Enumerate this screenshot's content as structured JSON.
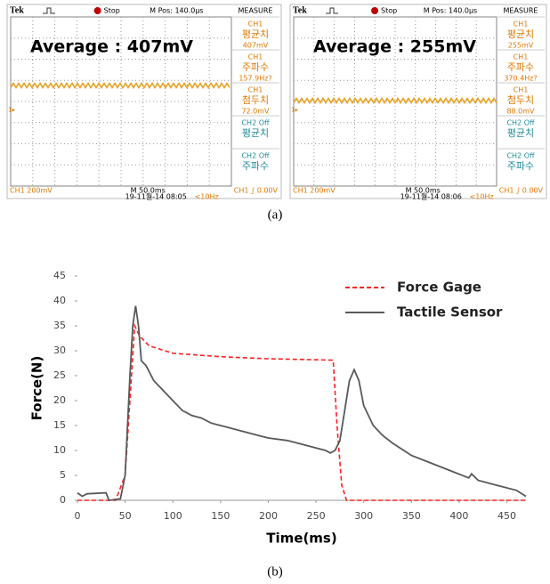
{
  "scopes": [
    {
      "brand": "Tek",
      "state": "Stop",
      "position": "M Pos: 140.0µs",
      "menu": "MEASURE",
      "readout": "Average : 407mV",
      "measures": [
        {
          "source": "CH1",
          "name": "평균치",
          "value": "407mV"
        },
        {
          "source": "CH1",
          "name": "주파수",
          "value": "157.9Hz?"
        },
        {
          "source": "CH1",
          "name": "첨두치",
          "value": "72.0mV"
        },
        {
          "source": "CH2 Off",
          "name": "평균치"
        },
        {
          "source": "CH2 Off",
          "name": "주파수"
        }
      ],
      "channel": "CH1  200mV",
      "timebase": "M 50.0ms",
      "trigger": "CH1 ∫ 0.00V",
      "timestamp": "19-11월-14 08:05",
      "rate": "<10Hz"
    },
    {
      "brand": "Tek",
      "state": "Stop",
      "position": "M Pos: 140.0µs",
      "menu": "MEASURE",
      "readout": "Average : 255mV",
      "measures": [
        {
          "source": "CH1",
          "name": "평균치",
          "value": "255mV"
        },
        {
          "source": "CH1",
          "name": "주파수",
          "value": "370.4Hz?"
        },
        {
          "source": "CH1",
          "name": "첨두치",
          "value": "88.0mV"
        },
        {
          "source": "CH2 Off",
          "name": "평균치"
        },
        {
          "source": "CH2 Off",
          "name": "주파수"
        }
      ],
      "channel": "CH1  200mV",
      "timebase": "M 50.0ms",
      "trigger": "CH1 ∫ 0.00V",
      "timestamp": "19-11월-14 08:06",
      "rate": "<10Hz"
    }
  ],
  "caption_a": "(a)",
  "chart_data": {
    "type": "line",
    "x_label": "Time(ms)",
    "y_label": "Force(N)",
    "xlim": [
      0,
      470
    ],
    "ylim": [
      0,
      45
    ],
    "xticks": [
      0,
      50,
      100,
      150,
      200,
      250,
      300,
      350,
      400,
      450
    ],
    "yticks": [
      0,
      5,
      10,
      15,
      20,
      25,
      30,
      35,
      40,
      45
    ],
    "series": [
      {
        "name": "Force Gage",
        "color": "#ff2020",
        "dashed": true,
        "x": [
          0,
          40,
          50,
          55,
          60,
          65,
          75,
          100,
          150,
          200,
          250,
          268,
          272,
          277,
          282,
          470
        ],
        "values": [
          0,
          0,
          5,
          20,
          35,
          33,
          31,
          29.5,
          28.8,
          28.4,
          28.2,
          28.1,
          15,
          3,
          0,
          0
        ]
      },
      {
        "name": "Tactile Sensor",
        "color": "#595959",
        "dashed": false,
        "x": [
          0,
          5,
          10,
          30,
          33,
          45,
          50,
          55,
          58,
          61,
          64,
          67,
          72,
          80,
          90,
          100,
          110,
          120,
          130,
          140,
          150,
          170,
          190,
          200,
          220,
          240,
          260,
          265,
          270,
          275,
          280,
          285,
          290,
          295,
          300,
          310,
          320,
          330,
          350,
          370,
          390,
          410,
          413,
          420,
          440,
          460,
          470
        ],
        "values": [
          1.5,
          0.8,
          1.3,
          1.5,
          0,
          0.3,
          5,
          25,
          35,
          39,
          35,
          28,
          27,
          24,
          22,
          20,
          18,
          17,
          16.5,
          15.5,
          15,
          14,
          13,
          12.5,
          12,
          11,
          10,
          9.5,
          10,
          12,
          18,
          24,
          26.2,
          24,
          19,
          15,
          13,
          11.5,
          9,
          7.5,
          6,
          4.5,
          5.3,
          4,
          3,
          2,
          0.8
        ]
      }
    ]
  },
  "caption_b": "(b)"
}
